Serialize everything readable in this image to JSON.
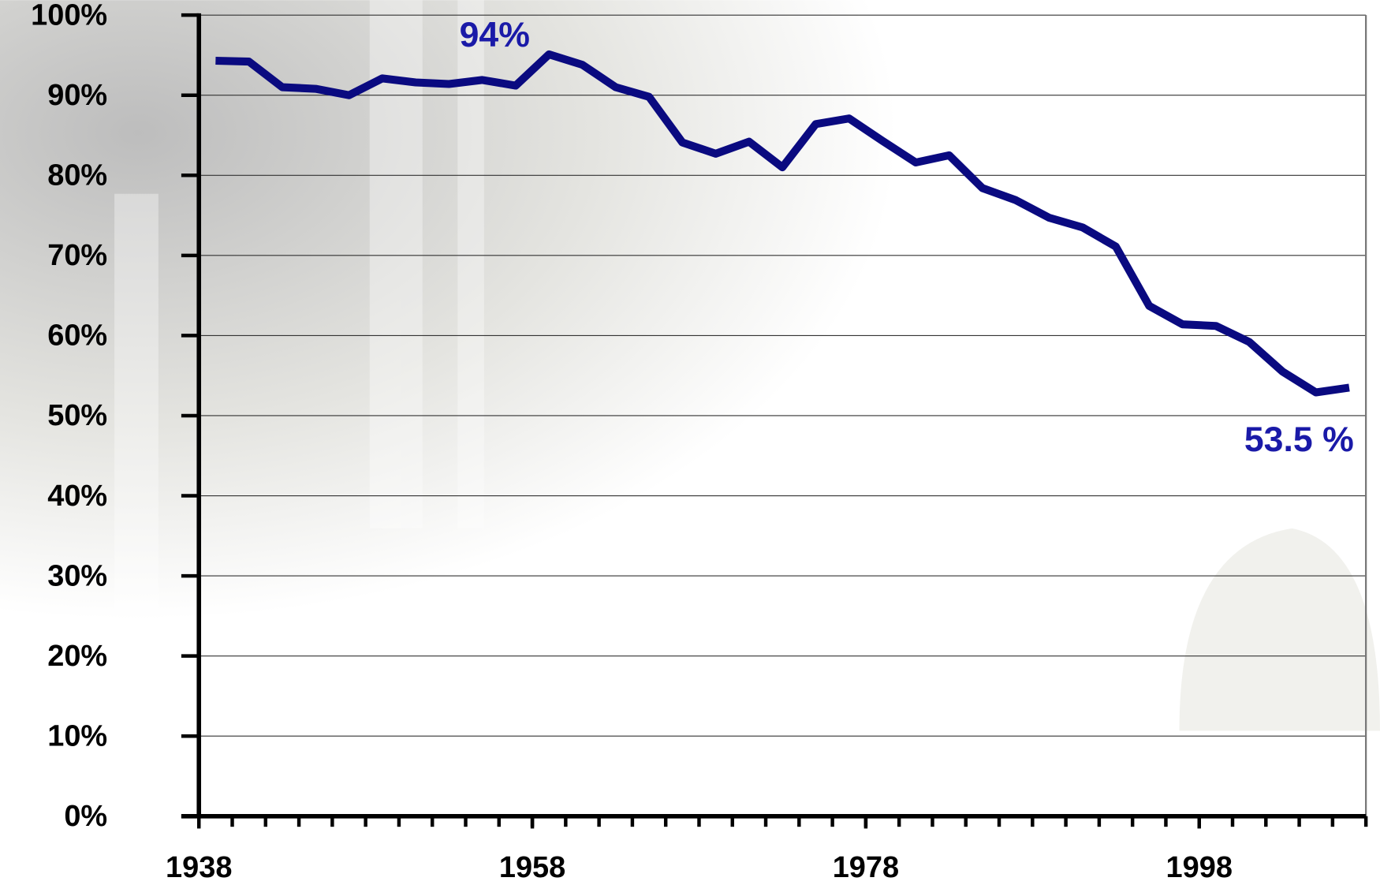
{
  "chart_data": {
    "type": "line",
    "x": [
      1939,
      1941,
      1943,
      1945,
      1947,
      1949,
      1951,
      1953,
      1955,
      1957,
      1959,
      1961,
      1963,
      1965,
      1967,
      1969,
      1971,
      1973,
      1975,
      1977,
      1979,
      1981,
      1983,
      1985,
      1987,
      1989,
      1991,
      1993,
      1995,
      1997,
      1999,
      2001,
      2003,
      2005,
      2007
    ],
    "series": [
      {
        "color": "#0a0a80",
        "values": [
          94.3,
          94.2,
          91.0,
          90.8,
          90.0,
          92.1,
          91.6,
          91.4,
          91.9,
          91.2,
          95.1,
          93.8,
          91.0,
          89.8,
          84.1,
          82.7,
          84.2,
          81.0,
          86.4,
          87.1,
          84.3,
          81.6,
          82.5,
          78.4,
          76.9,
          74.7,
          73.5,
          71.1,
          63.7,
          61.4,
          61.2,
          59.2,
          55.5,
          52.9,
          53.5
        ]
      }
    ],
    "annotations": [
      "94%",
      "53.5 %"
    ],
    "xlim": [
      1938,
      2008
    ],
    "xticks": [
      1938,
      1958,
      1978,
      1998
    ],
    "ylim": [
      0,
      100
    ],
    "yticks": [
      {
        "value": 0,
        "label": "0%"
      },
      {
        "value": 10,
        "label": "10%"
      },
      {
        "value": 20,
        "label": "20%"
      },
      {
        "value": 30,
        "label": "30%"
      },
      {
        "value": 40,
        "label": "40%"
      },
      {
        "value": 50,
        "label": "50%"
      },
      {
        "value": 60,
        "label": "60%"
      },
      {
        "value": 70,
        "label": "70%"
      },
      {
        "value": 80,
        "label": "80%"
      },
      {
        "value": 90,
        "label": "90%"
      },
      {
        "value": 100,
        "label": "100%"
      }
    ],
    "grid": true
  }
}
